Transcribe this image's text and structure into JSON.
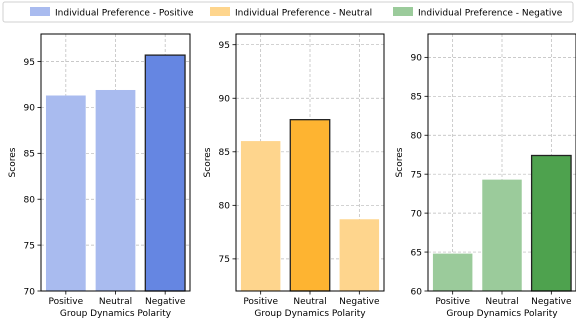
{
  "legend": {
    "placement": "top-center",
    "entries": [
      {
        "label": "Individual Preference - Positive",
        "color": "#a9bbef"
      },
      {
        "label": "Individual Preference - Neutral",
        "color": "#fed58d"
      },
      {
        "label": "Individual Preference - Negative",
        "color": "#9bcb9b"
      }
    ]
  },
  "chart_data": [
    {
      "type": "bar",
      "categories": [
        "Positive",
        "Neutral",
        "Negative"
      ],
      "values": [
        91.3,
        91.9,
        95.7
      ],
      "highlight_index": 2,
      "colors": {
        "light": "#a9bbef",
        "highlight": "#6586e2"
      },
      "xlabel": "Group Dynamics Polarity",
      "ylabel": "Scores",
      "ylim": [
        70,
        98
      ],
      "yticks": [
        70,
        75,
        80,
        85,
        90,
        95
      ],
      "grid": true
    },
    {
      "type": "bar",
      "categories": [
        "Positive",
        "Neutral",
        "Negative"
      ],
      "values": [
        86.0,
        88.0,
        78.7
      ],
      "highlight_index": 1,
      "colors": {
        "light": "#fed58d",
        "highlight": "#feb431"
      },
      "xlabel": "Group Dynamics Polarity",
      "ylabel": "Scores",
      "ylim": [
        72,
        96
      ],
      "yticks": [
        75,
        80,
        85,
        90,
        95
      ],
      "grid": true
    },
    {
      "type": "bar",
      "categories": [
        "Positive",
        "Neutral",
        "Negative"
      ],
      "values": [
        64.8,
        74.3,
        77.4
      ],
      "highlight_index": 2,
      "colors": {
        "light": "#9bcb9b",
        "highlight": "#4ea24e"
      },
      "xlabel": "Group Dynamics Polarity",
      "ylabel": "Scores",
      "ylim": [
        60,
        93
      ],
      "yticks": [
        60,
        65,
        70,
        75,
        80,
        85,
        90
      ],
      "grid": true
    }
  ]
}
